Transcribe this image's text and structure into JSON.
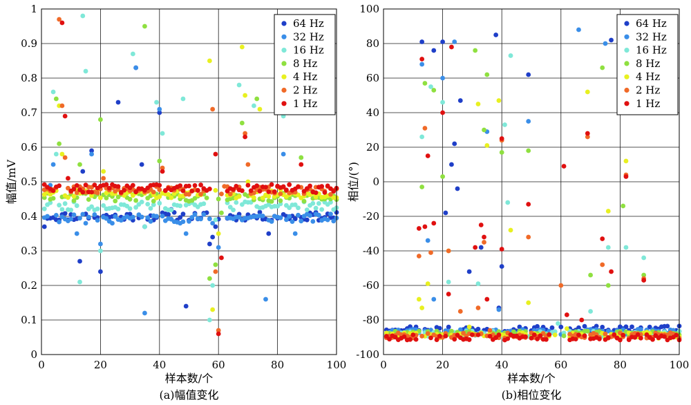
{
  "chart_data": [
    {
      "type": "scatter",
      "caption": "(a)幅值变化",
      "xlabel": "样本数/个",
      "ylabel": "幅值/mV",
      "xlim": [
        0,
        100
      ],
      "ylim": [
        0,
        1
      ],
      "xticks": [
        "0",
        "20",
        "40",
        "60",
        "80",
        "100"
      ],
      "yticks": [
        "0",
        "0.1",
        "0.2",
        "0.3",
        "0.4",
        "0.5",
        "0.6",
        "0.7",
        "0.8",
        "0.9",
        "1"
      ],
      "grid": true,
      "legend_position": "top-right",
      "series": [
        {
          "name": "64 Hz",
          "color": "#1f3fc8",
          "base": 0.4,
          "outliers": [
            [
              1,
              0.37
            ],
            [
              5,
              0.39
            ],
            [
              13,
              0.27
            ],
            [
              14,
              0.53
            ],
            [
              17,
              0.59
            ],
            [
              20,
              0.24
            ],
            [
              26,
              0.73
            ],
            [
              32,
              0.83
            ],
            [
              34,
              0.55
            ],
            [
              35,
              0.37
            ],
            [
              40,
              0.7
            ],
            [
              44,
              0.42
            ],
            [
              49,
              0.14
            ],
            [
              57,
              0.32
            ],
            [
              58,
              0.34
            ],
            [
              59,
              0.37
            ],
            [
              77,
              0.35
            ],
            [
              91,
              0.41
            ]
          ]
        },
        {
          "name": "32 Hz",
          "color": "#3a8ee8",
          "base": 0.395,
          "outliers": [
            [
              3,
              0.49
            ],
            [
              4,
              0.55
            ],
            [
              12,
              0.35
            ],
            [
              15,
              0.38
            ],
            [
              17,
              0.58
            ],
            [
              20,
              0.32
            ],
            [
              24,
              0.38
            ],
            [
              32,
              0.83
            ],
            [
              35,
              0.12
            ],
            [
              40,
              0.71
            ],
            [
              47,
              0.38
            ],
            [
              49,
              0.35
            ],
            [
              58,
              0.38
            ],
            [
              60,
              0.31
            ],
            [
              76,
              0.16
            ],
            [
              82,
              0.58
            ],
            [
              86,
              0.35
            ]
          ]
        },
        {
          "name": "16 Hz",
          "color": "#7fe8d8",
          "base": 0.43,
          "outliers": [
            [
              4,
              0.76
            ],
            [
              5,
              0.58
            ],
            [
              13,
              0.21
            ],
            [
              14,
              0.98
            ],
            [
              15,
              0.82
            ],
            [
              20,
              0.3
            ],
            [
              31,
              0.87
            ],
            [
              35,
              0.37
            ],
            [
              39,
              0.73
            ],
            [
              41,
              0.64
            ],
            [
              48,
              0.74
            ],
            [
              57,
              0.1
            ],
            [
              58,
              0.2
            ],
            [
              59,
              0.39
            ],
            [
              66,
              0.44
            ],
            [
              67,
              0.78
            ],
            [
              72,
              0.72
            ],
            [
              82,
              0.69
            ],
            [
              88,
              0.57
            ]
          ]
        },
        {
          "name": "8 Hz",
          "color": "#8fe040",
          "base": 0.455,
          "outliers": [
            [
              5,
              0.74
            ],
            [
              6,
              0.61
            ],
            [
              13,
              0.55
            ],
            [
              20,
              0.68
            ],
            [
              35,
              0.95
            ],
            [
              40,
              0.56
            ],
            [
              57,
              0.22
            ],
            [
              59,
              0.26
            ],
            [
              61,
              0.41
            ],
            [
              68,
              0.67
            ],
            [
              73,
              0.74
            ],
            [
              88,
              0.57
            ]
          ]
        },
        {
          "name": "4 Hz",
          "color": "#e8f020",
          "base": 0.465,
          "outliers": [
            [
              6,
              0.72
            ],
            [
              7,
              0.58
            ],
            [
              21,
              0.53
            ],
            [
              57,
              0.85
            ],
            [
              58,
              0.13
            ],
            [
              60,
              0.35
            ],
            [
              68,
              0.89
            ],
            [
              69,
              0.75
            ],
            [
              70,
              0.5
            ],
            [
              74,
              0.71
            ]
          ]
        },
        {
          "name": "2 Hz",
          "color": "#f06a28",
          "base": 0.475,
          "outliers": [
            [
              6,
              0.97
            ],
            [
              7,
              0.72
            ],
            [
              8,
              0.57
            ],
            [
              21,
              0.51
            ],
            [
              41,
              0.54
            ],
            [
              58,
              0.71
            ],
            [
              59,
              0.24
            ],
            [
              60,
              0.07
            ],
            [
              69,
              0.64
            ],
            [
              70,
              0.55
            ]
          ]
        },
        {
          "name": "1 Hz",
          "color": "#e01010",
          "base": 0.48,
          "outliers": [
            [
              7,
              0.96
            ],
            [
              8,
              0.69
            ],
            [
              9,
              0.51
            ],
            [
              21,
              0.49
            ],
            [
              41,
              0.53
            ],
            [
              59,
              0.58
            ],
            [
              60,
              0.06
            ],
            [
              61,
              0.28
            ],
            [
              69,
              0.63
            ],
            [
              70,
              0.49
            ],
            [
              88,
              0.55
            ]
          ]
        }
      ]
    },
    {
      "type": "scatter",
      "caption": "(b)相位变化",
      "xlabel": "样本数/个",
      "ylabel": "相位/(°)",
      "xlim": [
        0,
        100
      ],
      "ylim": [
        -100,
        100
      ],
      "xticks": [
        "0",
        "20",
        "40",
        "60",
        "80",
        "100"
      ],
      "yticks": [
        "-100",
        "-80",
        "-60",
        "-40",
        "-20",
        "0",
        "20",
        "40",
        "60",
        "80",
        "100"
      ],
      "grid": true,
      "legend_position": "top-right",
      "series": [
        {
          "name": "64 Hz",
          "color": "#1f3fc8",
          "base": -85,
          "outliers": [
            [
              13,
              81
            ],
            [
              17,
              76
            ],
            [
              20,
              81
            ],
            [
              21,
              -18
            ],
            [
              23,
              10
            ],
            [
              24,
              22
            ],
            [
              25,
              -4
            ],
            [
              26,
              47
            ],
            [
              29,
              -52
            ],
            [
              33,
              -38
            ],
            [
              38,
              85
            ],
            [
              39,
              -73
            ],
            [
              40,
              -49
            ],
            [
              49,
              62
            ],
            [
              77,
              82
            ],
            [
              88,
              40
            ]
          ]
        },
        {
          "name": "32 Hz",
          "color": "#3a8ee8",
          "base": -87,
          "outliers": [
            [
              13,
              68
            ],
            [
              15,
              -34
            ],
            [
              17,
              -68
            ],
            [
              20,
              60
            ],
            [
              24,
              81
            ],
            [
              35,
              29
            ],
            [
              39,
              -74
            ],
            [
              49,
              35
            ],
            [
              66,
              88
            ],
            [
              75,
              80
            ]
          ]
        },
        {
          "name": "16 Hz",
          "color": "#7fe8d8",
          "base": -88,
          "outliers": [
            [
              13,
              26
            ],
            [
              16,
              55
            ],
            [
              20,
              46
            ],
            [
              22,
              -58
            ],
            [
              32,
              -59
            ],
            [
              41,
              33
            ],
            [
              42,
              -12
            ],
            [
              43,
              73
            ],
            [
              59,
              -82
            ],
            [
              70,
              -75
            ],
            [
              76,
              -38
            ],
            [
              82,
              -38
            ],
            [
              88,
              -44
            ]
          ]
        },
        {
          "name": "8 Hz",
          "color": "#8fe040",
          "base": -88,
          "outliers": [
            [
              13,
              -3
            ],
            [
              14,
              57
            ],
            [
              17,
              53
            ],
            [
              20,
              3
            ],
            [
              31,
              76
            ],
            [
              34,
              30
            ],
            [
              35,
              62
            ],
            [
              40,
              17
            ],
            [
              49,
              18
            ],
            [
              70,
              -54
            ],
            [
              74,
              66
            ],
            [
              76,
              -60
            ],
            [
              81,
              -14
            ],
            [
              88,
              -54
            ]
          ]
        },
        {
          "name": "4 Hz",
          "color": "#e8f020",
          "base": -89,
          "outliers": [
            [
              12,
              -68
            ],
            [
              13,
              -73
            ],
            [
              15,
              -59
            ],
            [
              22,
              -40
            ],
            [
              29,
              -84
            ],
            [
              32,
              45
            ],
            [
              35,
              21
            ],
            [
              39,
              47
            ],
            [
              43,
              -28
            ],
            [
              49,
              -70
            ],
            [
              62,
              -85
            ],
            [
              69,
              52
            ],
            [
              76,
              -17
            ],
            [
              82,
              12
            ],
            [
              89,
              -87
            ]
          ]
        },
        {
          "name": "2 Hz",
          "color": "#f06a28",
          "base": -89,
          "outliers": [
            [
              12,
              -43
            ],
            [
              14,
              31
            ],
            [
              16,
              -41
            ],
            [
              22,
              -40
            ],
            [
              26,
              -75
            ],
            [
              32,
              -73
            ],
            [
              34,
              -35
            ],
            [
              36,
              -86
            ],
            [
              40,
              24
            ],
            [
              49,
              -32
            ],
            [
              60,
              -60
            ],
            [
              69,
              26
            ],
            [
              74,
              -48
            ],
            [
              82,
              4
            ],
            [
              88,
              -56
            ]
          ]
        },
        {
          "name": "1 Hz",
          "color": "#e01010",
          "base": -90,
          "outliers": [
            [
              12,
              -27
            ],
            [
              13,
              71
            ],
            [
              14,
              -26
            ],
            [
              15,
              15
            ],
            [
              17,
              -24
            ],
            [
              20,
              40
            ],
            [
              22,
              -65
            ],
            [
              23,
              78
            ],
            [
              31,
              -38
            ],
            [
              33,
              -25
            ],
            [
              34,
              -32
            ],
            [
              35,
              -68
            ],
            [
              40,
              -39
            ],
            [
              40,
              25
            ],
            [
              49,
              -13
            ],
            [
              61,
              9
            ],
            [
              62,
              -77
            ],
            [
              67,
              -80
            ],
            [
              69,
              28
            ],
            [
              74,
              -33
            ],
            [
              77,
              -52
            ],
            [
              82,
              3
            ],
            [
              88,
              -57
            ]
          ]
        }
      ]
    }
  ]
}
